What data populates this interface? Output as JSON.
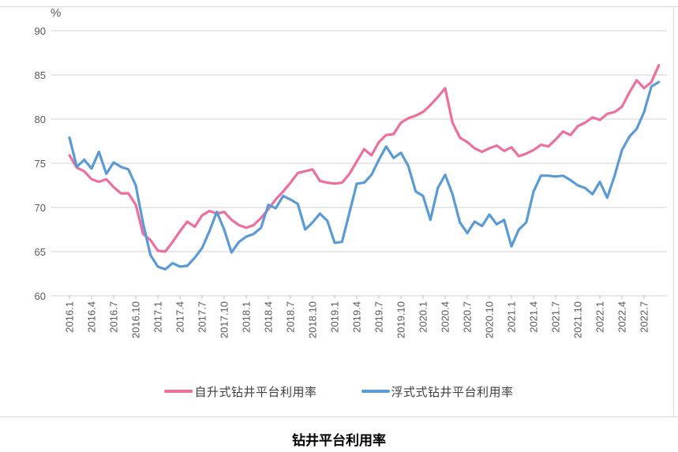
{
  "unit_label": "%",
  "title": "钻井平台利用率",
  "colors": {
    "jackup": "#EC6F9E",
    "floater": "#5B9BD5",
    "grid": "#D9D9D9",
    "axis_text": "#595959",
    "legend_text": "#404040"
  },
  "chart_data": {
    "type": "line",
    "title": "钻井平台利用率",
    "ylabel": "%",
    "ylim": [
      60,
      90
    ],
    "y_ticks": [
      60,
      65,
      70,
      75,
      80,
      85,
      90
    ],
    "grid": "horizontal",
    "legend_position": "bottom",
    "x_tick_every": 3,
    "x": [
      "2016.1",
      "2016.2",
      "2016.3",
      "2016.4",
      "2016.5",
      "2016.6",
      "2016.7",
      "2016.8",
      "2016.9",
      "2016.10",
      "2016.11",
      "2016.12",
      "2017.1",
      "2017.2",
      "2017.3",
      "2017.4",
      "2017.5",
      "2017.6",
      "2017.7",
      "2017.8",
      "2017.9",
      "2017.10",
      "2017.11",
      "2017.12",
      "2018.1",
      "2018.2",
      "2018.3",
      "2018.4",
      "2018.5",
      "2018.6",
      "2018.7",
      "2018.8",
      "2018.9",
      "2018.10",
      "2018.11",
      "2018.12",
      "2019.1",
      "2019.2",
      "2019.3",
      "2019.4",
      "2019.5",
      "2019.6",
      "2019.7",
      "2019.8",
      "2019.9",
      "2019.10",
      "2019.11",
      "2019.12",
      "2020.1",
      "2020.2",
      "2020.3",
      "2020.4",
      "2020.5",
      "2020.6",
      "2020.7",
      "2020.8",
      "2020.9",
      "2020.10",
      "2020.11",
      "2020.12",
      "2021.1",
      "2021.2",
      "2021.3",
      "2021.4",
      "2021.5",
      "2021.6",
      "2021.7",
      "2021.8",
      "2021.9",
      "2021.10",
      "2021.11",
      "2021.12",
      "2022.1",
      "2022.2",
      "2022.3",
      "2022.4",
      "2022.5",
      "2022.6",
      "2022.7",
      "2022.8",
      "2022.9"
    ],
    "series": [
      {
        "name": "自升式钻井平台利用率",
        "color": "#EC6F9E",
        "values": [
          75.9,
          74.5,
          74.1,
          73.2,
          72.9,
          73.2,
          72.3,
          71.6,
          71.6,
          70.3,
          67.0,
          66.3,
          65.1,
          65.0,
          66.1,
          67.3,
          68.4,
          67.8,
          69.1,
          69.6,
          69.3,
          69.5,
          68.6,
          68.0,
          67.7,
          68.0,
          68.8,
          69.8,
          70.9,
          71.8,
          72.8,
          73.9,
          74.1,
          74.3,
          73.0,
          72.8,
          72.7,
          72.8,
          73.8,
          75.2,
          76.6,
          75.9,
          77.4,
          78.2,
          78.3,
          79.6,
          80.1,
          80.4,
          80.8,
          81.6,
          82.5,
          83.5,
          79.6,
          77.9,
          77.4,
          76.7,
          76.3,
          76.7,
          77.0,
          76.4,
          76.8,
          75.8,
          76.1,
          76.5,
          77.1,
          76.9,
          77.7,
          78.6,
          78.2,
          79.2,
          79.6,
          80.2,
          79.9,
          80.6,
          80.8,
          81.4,
          83.0,
          84.4,
          83.5,
          84.2,
          86.1
        ]
      },
      {
        "name": "浮式式钻井平台利用率",
        "color": "#5B9BD5",
        "values": [
          77.9,
          74.6,
          75.4,
          74.4,
          76.3,
          73.8,
          75.1,
          74.6,
          74.3,
          72.5,
          68.2,
          64.6,
          63.3,
          63.0,
          63.7,
          63.3,
          63.4,
          64.3,
          65.4,
          67.3,
          69.5,
          67.5,
          64.9,
          66.1,
          66.7,
          67.0,
          67.7,
          70.3,
          69.9,
          71.3,
          70.9,
          70.4,
          67.5,
          68.3,
          69.3,
          68.5,
          66.0,
          66.1,
          69.4,
          72.7,
          72.8,
          73.7,
          75.4,
          76.9,
          75.6,
          76.2,
          74.7,
          71.8,
          71.3,
          68.6,
          72.2,
          73.7,
          71.5,
          68.3,
          67.1,
          68.4,
          67.9,
          69.2,
          68.1,
          68.6,
          65.6,
          67.5,
          68.3,
          71.8,
          73.6,
          73.6,
          73.5,
          73.6,
          73.1,
          72.5,
          72.2,
          71.5,
          72.9,
          71.1,
          73.6,
          76.5,
          78.0,
          78.9,
          80.8,
          83.7,
          84.2
        ]
      }
    ]
  }
}
